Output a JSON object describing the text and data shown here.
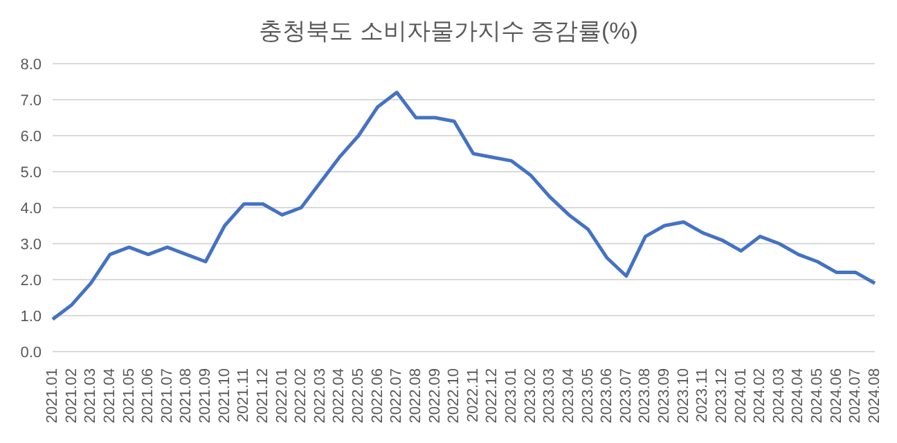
{
  "chart_data": {
    "type": "line",
    "title": "충청북도 소비자물가지수 증감률(%)",
    "categories": [
      "2021.01",
      "2021.02",
      "2021.03",
      "2021.04",
      "2021.05",
      "2021.06",
      "2021.07",
      "2021.08",
      "2021.09",
      "2021.10",
      "2021.11",
      "2021.12",
      "2022.01",
      "2022.02",
      "2022.03",
      "2022.04",
      "2022.05",
      "2022.06",
      "2022.07",
      "2022.08",
      "2022.09",
      "2022.10",
      "2022.11",
      "2022.12",
      "2023.01",
      "2023.02",
      "2023.03",
      "2023.04",
      "2023.05",
      "2023.06",
      "2023.07",
      "2023.08",
      "2023.09",
      "2023.10",
      "2023.11",
      "2023.12",
      "2024.01",
      "2024.02",
      "2024.03",
      "2024.04",
      "2024.05",
      "2024.06",
      "2024.07",
      "2024.08"
    ],
    "series": [
      {
        "color": "#4472c4",
        "values": [
          0.9,
          1.3,
          1.9,
          2.7,
          2.9,
          2.7,
          2.9,
          2.7,
          2.5,
          3.5,
          4.1,
          4.1,
          3.8,
          4.0,
          4.7,
          5.4,
          6.0,
          6.8,
          7.2,
          6.5,
          6.5,
          6.4,
          5.5,
          5.4,
          5.3,
          4.9,
          4.3,
          3.8,
          3.4,
          2.6,
          2.1,
          3.2,
          3.5,
          3.6,
          3.3,
          3.1,
          2.8,
          3.2,
          3.0,
          2.7,
          2.5,
          2.2,
          2.2,
          1.9
        ]
      }
    ],
    "ylim": [
      0,
      8
    ],
    "yticks": [
      {
        "value": 0,
        "label": "0.0"
      },
      {
        "value": 1,
        "label": "1.0"
      },
      {
        "value": 2,
        "label": "2.0"
      },
      {
        "value": 3,
        "label": "3.0"
      },
      {
        "value": 4,
        "label": "4.0"
      },
      {
        "value": 5,
        "label": "5.0"
      },
      {
        "value": 6,
        "label": "6.0"
      },
      {
        "value": 7,
        "label": "7.0"
      },
      {
        "value": 8,
        "label": "8.0"
      }
    ],
    "grid": "y",
    "marker": "none",
    "line_style": "solid"
  }
}
